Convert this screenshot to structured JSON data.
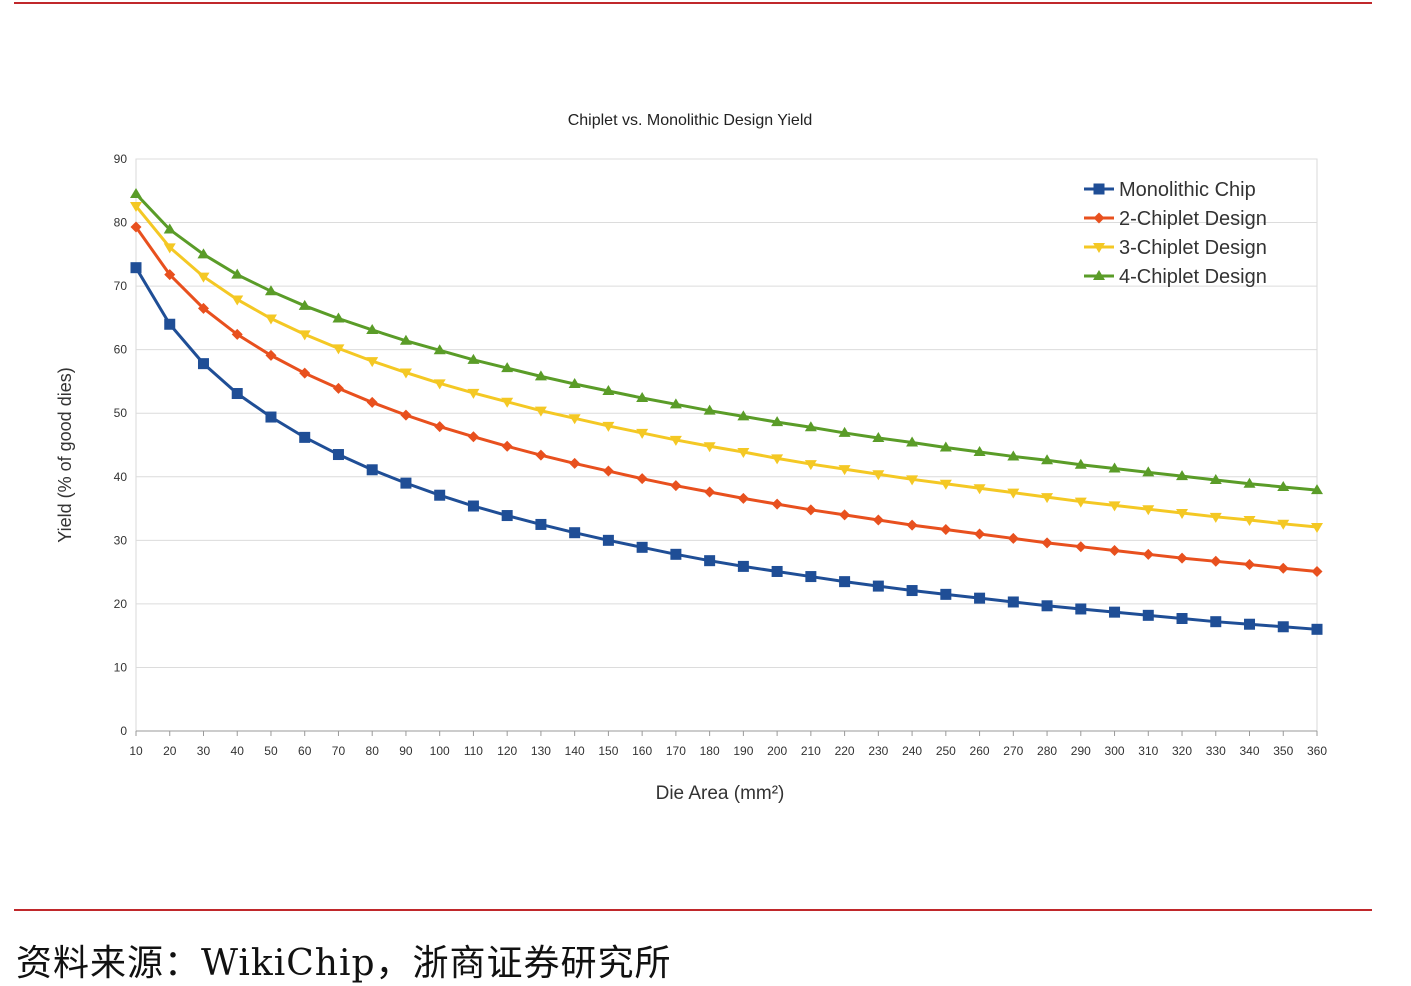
{
  "chart_data": {
    "type": "line",
    "title": "Chiplet vs. Monolithic Design Yield",
    "xlabel": "Die Area (mm²)",
    "ylabel": "Yield (% of good dies)",
    "xlim": [
      10,
      360
    ],
    "ylim": [
      0,
      90
    ],
    "yticks": [
      0,
      10,
      20,
      30,
      40,
      50,
      60,
      70,
      80,
      90
    ],
    "x": [
      10,
      20,
      30,
      40,
      50,
      60,
      70,
      80,
      90,
      100,
      110,
      120,
      130,
      140,
      150,
      160,
      170,
      180,
      190,
      200,
      210,
      220,
      230,
      240,
      250,
      260,
      270,
      280,
      290,
      300,
      310,
      320,
      330,
      340,
      350,
      360
    ],
    "grid": true,
    "legend_position": "top-right",
    "series": [
      {
        "name": "Monolithic Chip",
        "color": "#1f4e96",
        "marker": "square",
        "values": [
          72.9,
          64.0,
          57.8,
          53.1,
          49.4,
          46.2,
          43.5,
          41.1,
          39.0,
          37.1,
          35.4,
          33.9,
          32.5,
          31.2,
          30.0,
          28.9,
          27.8,
          26.8,
          25.9,
          25.1,
          24.3,
          23.5,
          22.8,
          22.1,
          21.5,
          20.9,
          20.3,
          19.7,
          19.2,
          18.7,
          18.2,
          17.7,
          17.2,
          16.8,
          16.4,
          16.0
        ]
      },
      {
        "name": "2-Chiplet Design",
        "color": "#e8501e",
        "marker": "diamond",
        "values": [
          79.3,
          71.8,
          66.5,
          62.4,
          59.1,
          56.3,
          53.9,
          51.7,
          49.7,
          47.9,
          46.3,
          44.8,
          43.4,
          42.1,
          40.9,
          39.7,
          38.6,
          37.6,
          36.6,
          35.7,
          34.8,
          34.0,
          33.2,
          32.4,
          31.7,
          31.0,
          30.3,
          29.6,
          29.0,
          28.4,
          27.8,
          27.2,
          26.7,
          26.2,
          25.6,
          25.1
        ]
      },
      {
        "name": "3-Chiplet Design",
        "color": "#f4c824",
        "marker": "triangle-down",
        "values": [
          82.6,
          76.1,
          71.5,
          67.9,
          64.9,
          62.4,
          60.2,
          58.2,
          56.4,
          54.7,
          53.2,
          51.8,
          50.4,
          49.2,
          48.0,
          46.9,
          45.8,
          44.8,
          43.9,
          42.9,
          42.0,
          41.2,
          40.4,
          39.6,
          38.9,
          38.2,
          37.5,
          36.8,
          36.1,
          35.5,
          34.9,
          34.3,
          33.7,
          33.2,
          32.6,
          32.1
        ]
      },
      {
        "name": "4-Chiplet Design",
        "color": "#5a9c28",
        "marker": "triangle-up",
        "values": [
          84.5,
          78.9,
          75.0,
          71.8,
          69.2,
          66.9,
          64.9,
          63.1,
          61.4,
          59.9,
          58.4,
          57.1,
          55.8,
          54.6,
          53.5,
          52.4,
          51.4,
          50.4,
          49.5,
          48.6,
          47.8,
          46.9,
          46.1,
          45.4,
          44.6,
          43.9,
          43.2,
          42.6,
          41.9,
          41.3,
          40.7,
          40.1,
          39.5,
          38.9,
          38.4,
          37.9
        ]
      }
    ]
  },
  "source_text": "资料来源：WikiChip，浙商证券研究所"
}
